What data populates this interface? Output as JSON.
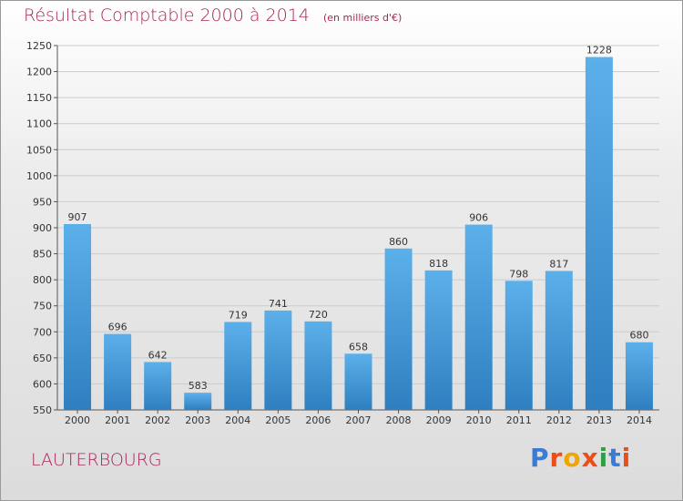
{
  "chart_data": {
    "type": "bar",
    "title": "Résultat Comptable 2000 à 2014",
    "subtitle": "(en milliers d'€)",
    "xlabel": "",
    "ylabel": "",
    "categories": [
      "2000",
      "2001",
      "2002",
      "2003",
      "2004",
      "2005",
      "2006",
      "2007",
      "2008",
      "2009",
      "2010",
      "2011",
      "2012",
      "2013",
      "2014"
    ],
    "values": [
      907,
      696,
      642,
      583,
      719,
      741,
      720,
      658,
      860,
      818,
      906,
      798,
      817,
      1228,
      680
    ],
    "ylim": [
      550,
      1250
    ],
    "yticks": [
      550,
      600,
      650,
      700,
      750,
      800,
      850,
      900,
      950,
      1000,
      1050,
      1100,
      1150,
      1200,
      1250
    ],
    "grid": true,
    "colors": {
      "bar_light": "#5cb0ea",
      "bar_dark": "#2f7fc0",
      "grid": "#cccccc"
    }
  },
  "footer": {
    "city": "LAUTERBOURG",
    "logo_letters": [
      {
        "ch": "P",
        "color": "#3a7bd5"
      },
      {
        "ch": "r",
        "color": "#e94e1b"
      },
      {
        "ch": "o",
        "color": "#f0a500"
      },
      {
        "ch": "x",
        "color": "#e94e1b"
      },
      {
        "ch": "i",
        "color": "#2f9e44"
      },
      {
        "ch": "t",
        "color": "#3a7bd5"
      },
      {
        "ch": "i",
        "color": "#e94e1b"
      }
    ]
  }
}
